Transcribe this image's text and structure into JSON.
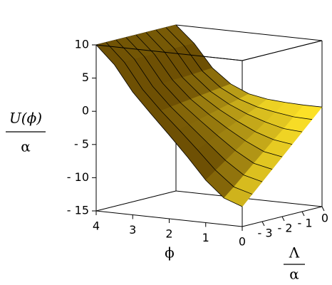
{
  "chart_data": {
    "type": "surface",
    "zlabel": {
      "numerator": "U(ϕ)",
      "denominator": "α"
    },
    "xlabel": "ϕ",
    "ylabel": {
      "numerator": "Λ",
      "denominator": "α"
    },
    "x": [
      0,
      0.5,
      1,
      1.5,
      2,
      2.5,
      3,
      3.5,
      4
    ],
    "y": [
      -4,
      -3.5,
      -3,
      -2.5,
      -2,
      -1.5,
      -1,
      -0.5,
      0
    ],
    "z": [
      [
        -12,
        -11.0,
        -8.6,
        -5.4,
        -2.4,
        0.5,
        3.5,
        7.3,
        10
      ],
      [
        -10.5,
        -9.7,
        -7.5,
        -4.7,
        -2.0,
        0.6,
        3.5,
        7.3,
        10
      ],
      [
        -9,
        -8.3,
        -6.4,
        -4.0,
        -1.6,
        0.8,
        3.6,
        7.4,
        10
      ],
      [
        -7.5,
        -6.9,
        -5.3,
        -3.3,
        -1.2,
        1.0,
        3.7,
        7.4,
        10
      ],
      [
        -6,
        -5.5,
        -4.2,
        -2.6,
        -0.8,
        1.2,
        3.8,
        7.4,
        10
      ],
      [
        -4.5,
        -4.1,
        -3.2,
        -1.9,
        -0.4,
        1.4,
        3.8,
        7.4,
        10
      ],
      [
        -3,
        -2.8,
        -2.1,
        -1.2,
        0,
        1.6,
        3.9,
        7.5,
        10
      ],
      [
        -1.5,
        -1.4,
        -1.0,
        -0.5,
        0.4,
        1.8,
        4.0,
        7.5,
        10
      ],
      [
        0,
        0,
        0.1,
        0.3,
        0.8,
        2.0,
        4.1,
        7.5,
        10
      ]
    ],
    "xlim": [
      0,
      4
    ],
    "ylim": [
      -4,
      0
    ],
    "zlim": [
      -15,
      10
    ],
    "xticks": [
      0,
      1,
      2,
      3,
      4
    ],
    "yticks": [
      {
        "value": -3,
        "label": "- 3"
      },
      {
        "value": -2,
        "label": "- 2"
      },
      {
        "value": -1,
        "label": "- 1"
      },
      0
    ],
    "zticks": [
      {
        "value": -15,
        "label": "- 15"
      },
      {
        "value": -10,
        "label": "- 10"
      },
      {
        "value": -5,
        "label": "- 5"
      },
      0,
      5,
      10
    ],
    "color_dark": "#5e4000",
    "color_light": "#ffe428",
    "mesh_color": "#000000"
  }
}
